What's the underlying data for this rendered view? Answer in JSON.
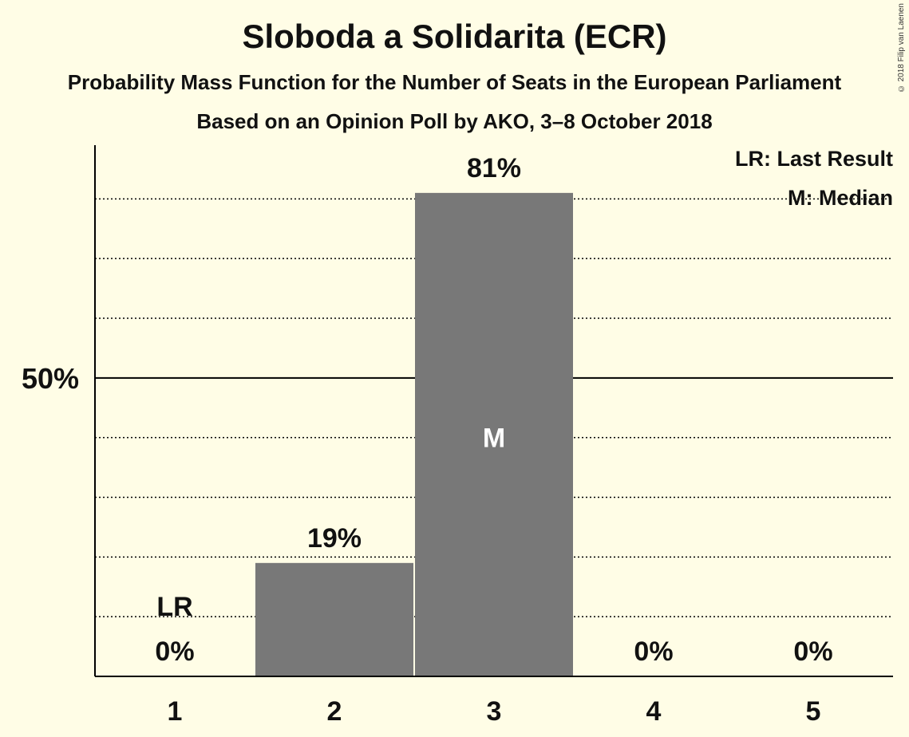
{
  "title": "Sloboda a Solidarita (ECR)",
  "subtitle1": "Probability Mass Function for the Number of Seats in the European Parliament",
  "subtitle2": "Based on an Opinion Poll by AKO, 3–8 October 2018",
  "copyright": "© 2018 Filip van Laenen",
  "legend": {
    "lr": "LR: Last Result",
    "m": "M: Median"
  },
  "colors": {
    "bar": "#787878",
    "background": "#fffde6",
    "text": "#111111"
  },
  "chart_data": {
    "type": "bar",
    "categories": [
      "1",
      "2",
      "3",
      "4",
      "5"
    ],
    "values": [
      0,
      19,
      81,
      0,
      0
    ],
    "labels": [
      "0%",
      "19%",
      "81%",
      "0%",
      "0%"
    ],
    "ylim": [
      0,
      89
    ],
    "yticks": [
      {
        "value": 50,
        "label": "50%"
      }
    ],
    "gridlines": [
      10,
      20,
      30,
      40,
      50,
      60,
      70,
      80
    ],
    "last_result": {
      "category": "1",
      "label": "LR"
    },
    "median": {
      "category": "3",
      "label": "M"
    }
  }
}
